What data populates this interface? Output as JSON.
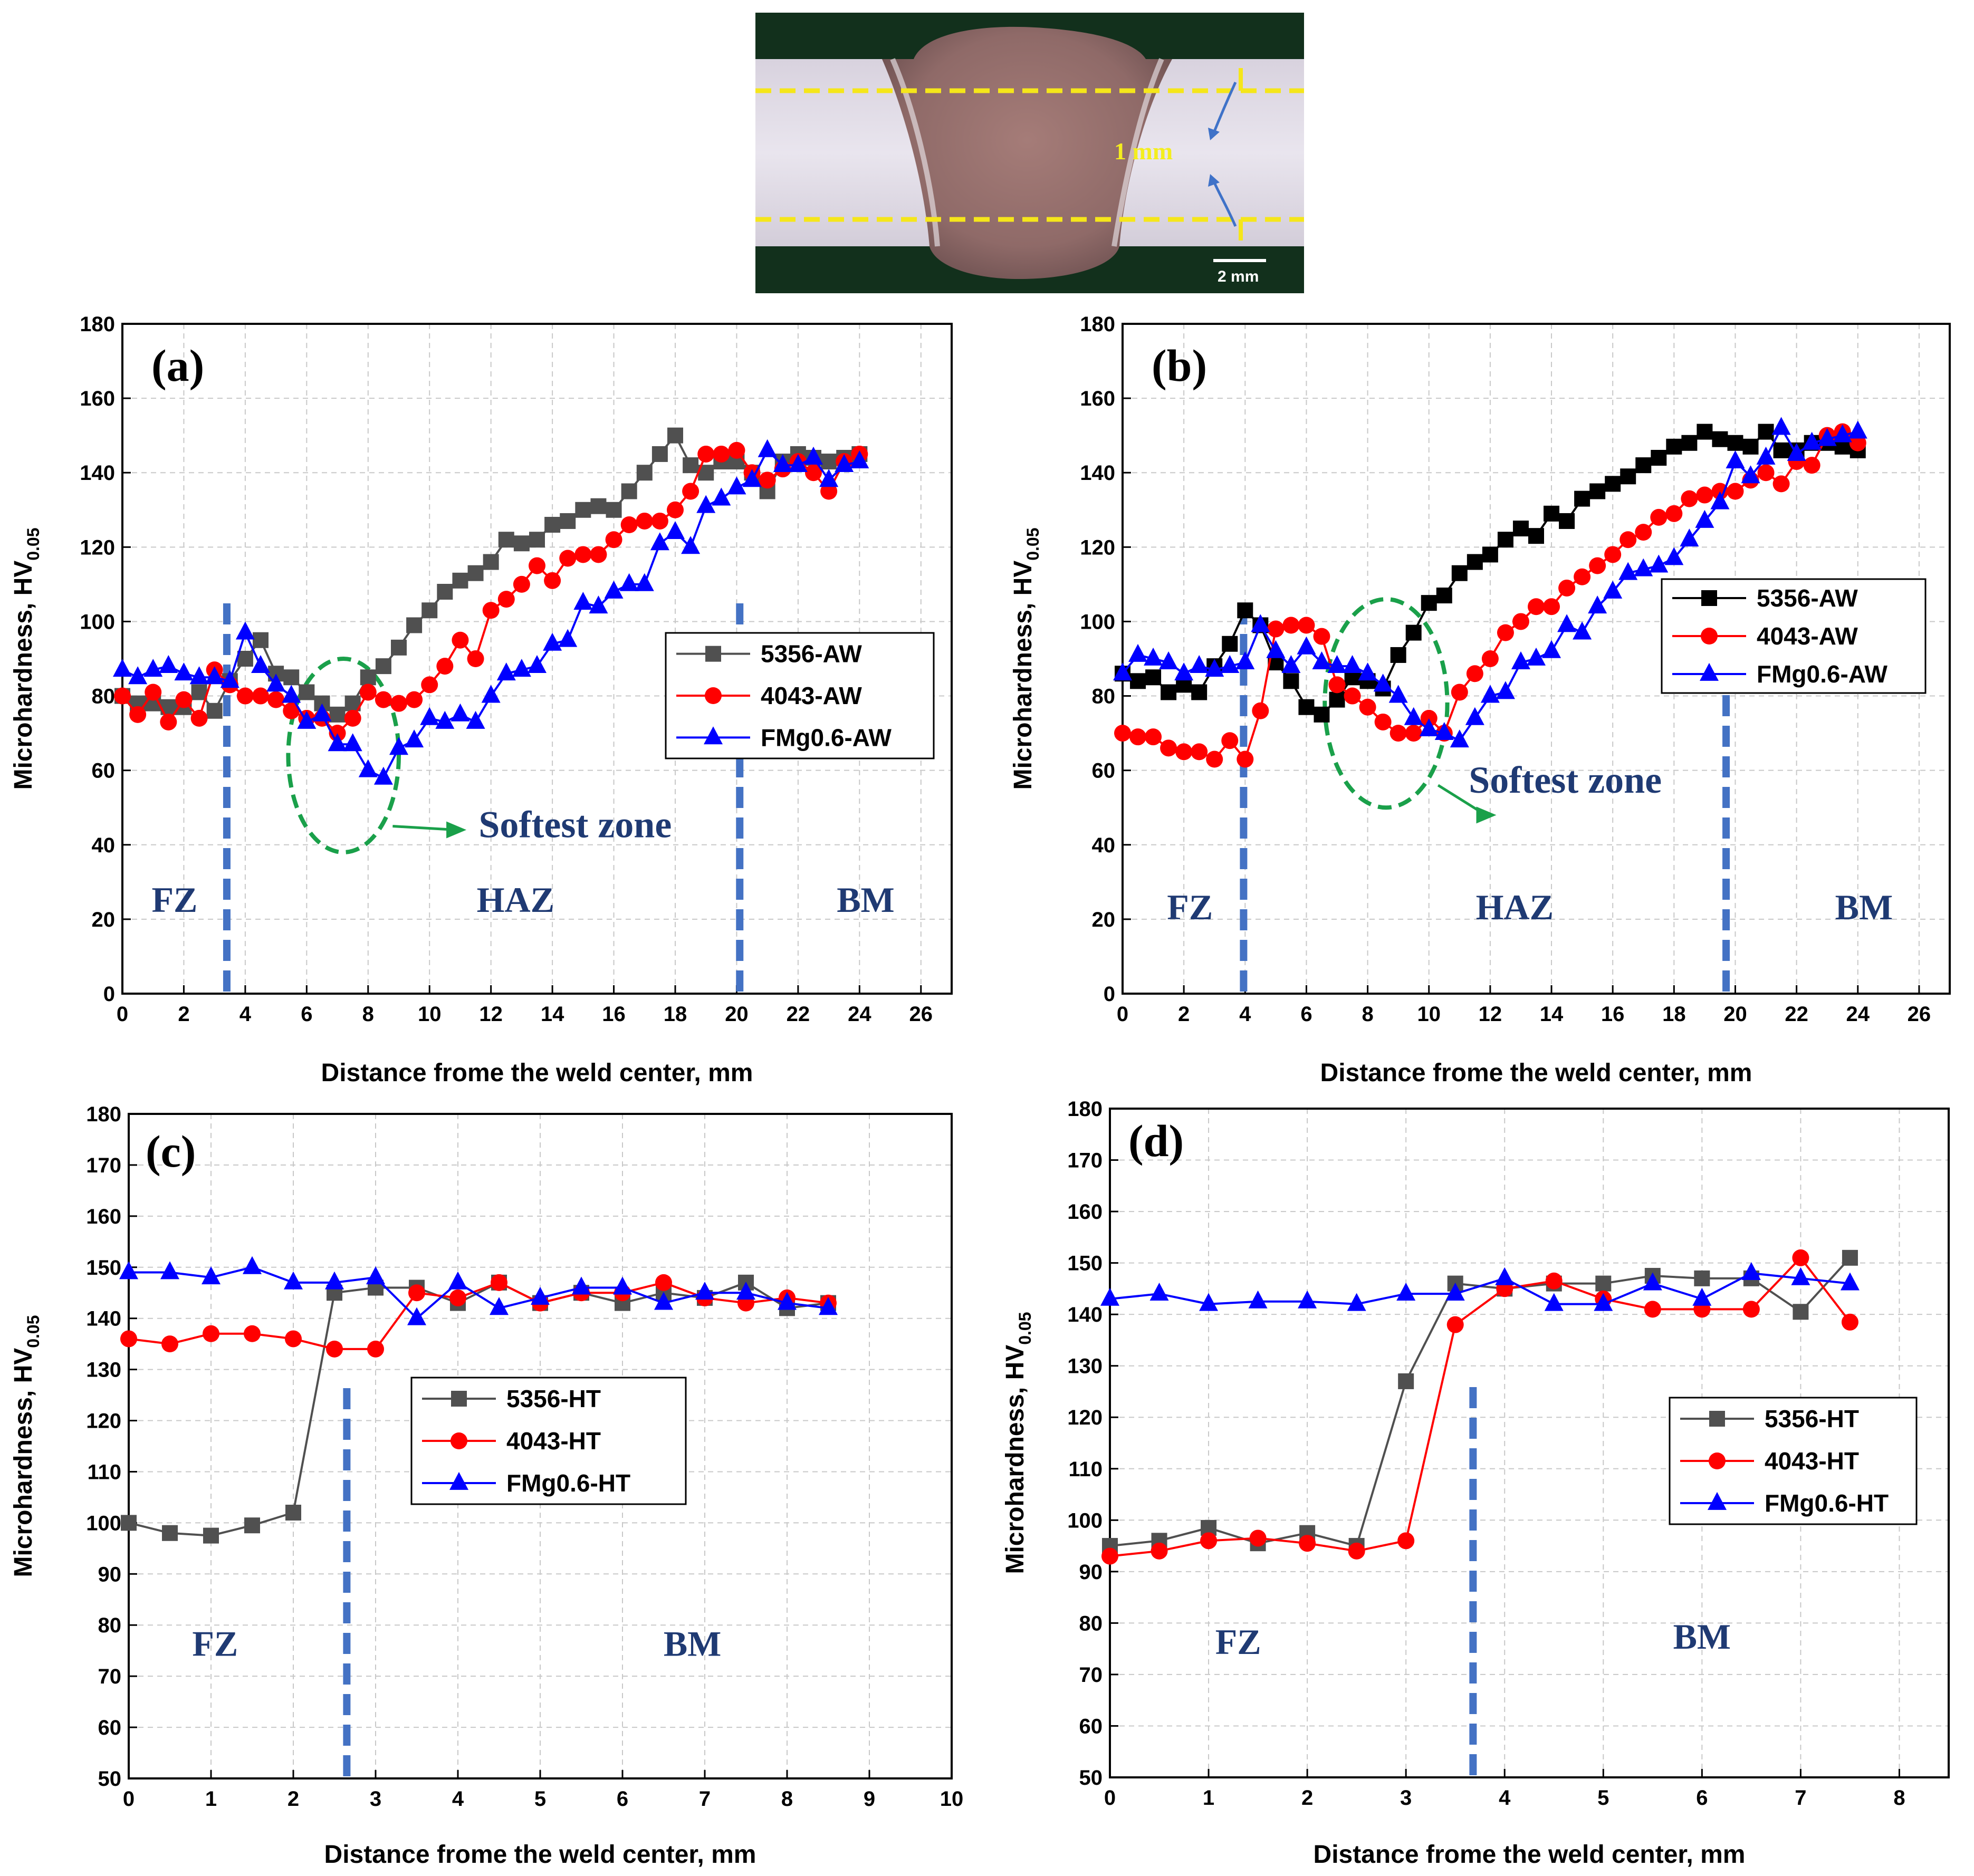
{
  "micrograph": {
    "dimension_label": "1 mm",
    "scale_label": "2 mm"
  },
  "colors": {
    "5356": "#505050",
    "5356_b": "#000000",
    "4043": "#ff0000",
    "FMg06": "#0000ff",
    "boundary": "#4472c4",
    "ellipse": "#1aa04a",
    "zone_text": "#1f3a73"
  },
  "chart_data": [
    {
      "id": "a",
      "type": "line",
      "tag": "(a)",
      "xlabel": "Distance frome the weld center, mm",
      "ylabel_main": "Microhardness, HV",
      "ylabel_sub": "0.05",
      "xlim": [
        0,
        27
      ],
      "ylim": [
        0,
        180
      ],
      "xticks": [
        0,
        2,
        4,
        6,
        8,
        10,
        12,
        14,
        16,
        18,
        20,
        22,
        24,
        26
      ],
      "yticks": [
        0,
        20,
        40,
        60,
        80,
        100,
        120,
        140,
        160,
        180
      ],
      "boundaries": [
        3.4,
        20.1
      ],
      "zones": [
        {
          "label": "FZ",
          "x": 1.7,
          "y": 22
        },
        {
          "label": "HAZ",
          "x": 12.8,
          "y": 22
        },
        {
          "label": "BM",
          "x": 24.2,
          "y": 22
        }
      ],
      "softest": {
        "label": "Softest zone",
        "cx": 7.2,
        "cy": 64,
        "rx": 1.8,
        "ry": 26,
        "ax1": 8.8,
        "ay1": 45,
        "ax2": 11.2,
        "ay2": 44,
        "tx": 11.6,
        "ty": 42
      },
      "series": [
        {
          "name": "5356-AW",
          "color": "#505050",
          "marker": "square",
          "x": [
            0,
            0.5,
            1,
            1.5,
            2,
            2.5,
            3,
            3.5,
            4,
            4.5,
            5,
            5.5,
            6,
            6.5,
            7,
            7.5,
            8,
            8.5,
            9,
            9.5,
            10,
            10.5,
            11,
            11.5,
            12,
            12.5,
            13,
            13.5,
            14,
            14.5,
            15,
            15.5,
            16,
            16.5,
            17,
            17.5,
            18,
            18.5,
            19,
            19.5,
            20,
            20.5,
            21,
            21.5,
            22,
            22.5,
            23,
            23.5,
            24
          ],
          "y": [
            80,
            78,
            78,
            77,
            77,
            81,
            76,
            84,
            90,
            95,
            86,
            85,
            81,
            78,
            75,
            78,
            85,
            88,
            93,
            99,
            103,
            108,
            111,
            113,
            116,
            122,
            121,
            122,
            126,
            127,
            130,
            131,
            130,
            135,
            140,
            145,
            150,
            142,
            140,
            143,
            143,
            140,
            135,
            143,
            145,
            144,
            143,
            144,
            145
          ]
        },
        {
          "name": "4043-AW",
          "color": "#ff0000",
          "marker": "circle",
          "x": [
            0,
            0.5,
            1,
            1.5,
            2,
            2.5,
            3,
            3.5,
            4,
            4.5,
            5,
            5.5,
            6,
            6.5,
            7,
            7.5,
            8,
            8.5,
            9,
            9.5,
            10,
            10.5,
            11,
            11.5,
            12,
            12.5,
            13,
            13.5,
            14,
            14.5,
            15,
            15.5,
            16,
            16.5,
            17,
            17.5,
            18,
            18.5,
            19,
            19.5,
            20,
            20.5,
            21,
            21.5,
            22,
            22.5,
            23,
            23.5,
            24
          ],
          "y": [
            80,
            75,
            81,
            73,
            79,
            74,
            87,
            83,
            80,
            80,
            79,
            76,
            74,
            74,
            70,
            74,
            81,
            79,
            78,
            79,
            83,
            88,
            95,
            90,
            103,
            106,
            110,
            115,
            111,
            117,
            118,
            118,
            122,
            126,
            127,
            127,
            130,
            135,
            145,
            145,
            146,
            140,
            138,
            141,
            143,
            140,
            135,
            143,
            145
          ]
        },
        {
          "name": "FMg0.6-AW",
          "color": "#0000ff",
          "marker": "triangle",
          "x": [
            0,
            0.5,
            1,
            1.5,
            2,
            2.5,
            3,
            3.5,
            4,
            4.5,
            5,
            5.5,
            6,
            6.5,
            7,
            7.5,
            8,
            8.5,
            9,
            9.5,
            10,
            10.5,
            11,
            11.5,
            12,
            12.5,
            13,
            13.5,
            14,
            14.5,
            15,
            15.5,
            16,
            16.5,
            17,
            17.5,
            18,
            18.5,
            19,
            19.5,
            20,
            20.5,
            21,
            21.5,
            22,
            22.5,
            23,
            23.5,
            24
          ],
          "y": [
            87,
            85,
            87,
            88,
            86,
            85,
            85,
            84,
            97,
            88,
            83,
            80,
            73,
            75,
            67,
            67,
            60,
            58,
            66,
            68,
            74,
            73,
            75,
            73,
            80,
            86,
            87,
            88,
            94,
            95,
            105,
            104,
            108,
            110,
            110,
            121,
            124,
            120,
            131,
            133,
            136,
            138,
            146,
            142,
            142,
            144,
            138,
            142,
            143
          ]
        }
      ]
    },
    {
      "id": "b",
      "type": "line",
      "tag": "(b)",
      "xlabel": "Distance frome the weld center, mm",
      "ylabel_main": "Microhardness, HV",
      "ylabel_sub": "0.05",
      "xlim": [
        0,
        27
      ],
      "ylim": [
        0,
        180
      ],
      "xticks": [
        0,
        2,
        4,
        6,
        8,
        10,
        12,
        14,
        16,
        18,
        20,
        22,
        24,
        26
      ],
      "yticks": [
        0,
        20,
        40,
        60,
        80,
        100,
        120,
        140,
        160,
        180
      ],
      "boundaries": [
        3.95,
        19.7
      ],
      "zones": [
        {
          "label": "FZ",
          "x": 2.2,
          "y": 20
        },
        {
          "label": "HAZ",
          "x": 12.8,
          "y": 20
        },
        {
          "label": "BM",
          "x": 24.2,
          "y": 20
        }
      ],
      "softest": {
        "label": "Softest zone",
        "cx": 8.6,
        "cy": 78,
        "rx": 2.0,
        "ry": 28,
        "ax1": 10.3,
        "ay1": 56,
        "ax2": 12.2,
        "ay2": 48,
        "tx": 11.3,
        "ty": 54
      },
      "series": [
        {
          "name": "5356-AW",
          "color": "#000000",
          "marker": "square",
          "x": [
            0,
            0.5,
            1,
            1.5,
            2,
            2.5,
            3,
            3.5,
            4,
            4.5,
            5,
            5.5,
            6,
            6.5,
            7,
            7.5,
            8,
            8.5,
            9,
            9.5,
            10,
            10.5,
            11,
            11.5,
            12,
            12.5,
            13,
            13.5,
            14,
            14.5,
            15,
            15.5,
            16,
            16.5,
            17,
            17.5,
            18,
            18.5,
            19,
            19.5,
            20,
            20.5,
            21,
            21.5,
            22,
            22.5,
            23,
            23.5,
            24
          ],
          "y": [
            86,
            84,
            85,
            81,
            83,
            81,
            88,
            94,
            103,
            99,
            89,
            84,
            77,
            75,
            79,
            85,
            84,
            82,
            91,
            97,
            105,
            107,
            113,
            116,
            118,
            122,
            125,
            123,
            129,
            127,
            133,
            135,
            137,
            139,
            142,
            144,
            147,
            148,
            151,
            149,
            148,
            147,
            151,
            146,
            146,
            148,
            148,
            147,
            146
          ]
        },
        {
          "name": "4043-AW",
          "color": "#ff0000",
          "marker": "circle",
          "x": [
            0,
            0.5,
            1,
            1.5,
            2,
            2.5,
            3,
            3.5,
            4,
            4.5,
            5,
            5.5,
            6,
            6.5,
            7,
            7.5,
            8,
            8.5,
            9,
            9.5,
            10,
            10.5,
            11,
            11.5,
            12,
            12.5,
            13,
            13.5,
            14,
            14.5,
            15,
            15.5,
            16,
            16.5,
            17,
            17.5,
            18,
            18.5,
            19,
            19.5,
            20,
            20.5,
            21,
            21.5,
            22,
            22.5,
            23,
            23.5,
            24
          ],
          "y": [
            70,
            69,
            69,
            66,
            65,
            65,
            63,
            68,
            63,
            76,
            98,
            99,
            99,
            96,
            83,
            80,
            77,
            73,
            70,
            70,
            74,
            70,
            81,
            86,
            90,
            97,
            100,
            104,
            104,
            109,
            112,
            115,
            118,
            122,
            124,
            128,
            129,
            133,
            134,
            135,
            135,
            138,
            140,
            137,
            143,
            142,
            150,
            151,
            148
          ]
        },
        {
          "name": "FMg0.6-AW",
          "color": "#0000ff",
          "marker": "triangle",
          "x": [
            0,
            0.5,
            1,
            1.5,
            2,
            2.5,
            3,
            3.5,
            4,
            4.5,
            5,
            5.5,
            6,
            6.5,
            7,
            7.5,
            8,
            8.5,
            9,
            9.5,
            10,
            10.5,
            11,
            11.5,
            12,
            12.5,
            13,
            13.5,
            14,
            14.5,
            15,
            15.5,
            16,
            16.5,
            17,
            17.5,
            18,
            18.5,
            19,
            19.5,
            20,
            20.5,
            21,
            21.5,
            22,
            22.5,
            23,
            23.5,
            24
          ],
          "y": [
            86,
            91,
            90,
            89,
            86,
            88,
            87,
            88,
            89,
            99,
            92,
            88,
            93,
            89,
            88,
            88,
            86,
            83,
            80,
            74,
            71,
            70,
            68,
            74,
            80,
            81,
            89,
            90,
            92,
            99,
            97,
            104,
            108,
            113,
            114,
            115,
            117,
            122,
            127,
            132,
            143,
            139,
            144,
            152,
            145,
            148,
            149,
            150,
            151
          ]
        }
      ]
    },
    {
      "id": "c",
      "type": "line",
      "tag": "(c)",
      "xlabel": "Distance frome the weld center, mm",
      "ylabel_main": "Microhardness, HV",
      "ylabel_sub": "0.05",
      "xlim": [
        0,
        10
      ],
      "ylim": [
        50,
        180
      ],
      "xticks": [
        0,
        1,
        2,
        3,
        4,
        5,
        6,
        7,
        8,
        9,
        10
      ],
      "yticks": [
        50,
        60,
        70,
        80,
        90,
        100,
        110,
        120,
        130,
        140,
        150,
        160,
        170,
        180
      ],
      "boundaries": [
        2.65
      ],
      "zones": [
        {
          "label": "FZ",
          "x": 1.05,
          "y": 74
        },
        {
          "label": "BM",
          "x": 6.85,
          "y": 74
        }
      ],
      "series": [
        {
          "name": "5356-HT",
          "color": "#505050",
          "marker": "square",
          "x": [
            0,
            0.5,
            1,
            1.5,
            2,
            2.5,
            3,
            3.5,
            4,
            4.5,
            5,
            5.5,
            6,
            6.5,
            7,
            7.5,
            8,
            8.5
          ],
          "y": [
            100,
            98,
            97.5,
            99.5,
            102,
            145,
            146,
            146,
            143,
            147,
            143,
            145,
            143,
            145,
            144,
            147,
            142,
            143
          ]
        },
        {
          "name": "4043-HT",
          "color": "#ff0000",
          "marker": "circle",
          "x": [
            0,
            0.5,
            1,
            1.5,
            2,
            2.5,
            3,
            3.5,
            4,
            4.5,
            5,
            5.5,
            6,
            6.5,
            7,
            7.5,
            8,
            8.5
          ],
          "y": [
            136,
            135,
            137,
            137,
            136,
            134,
            134,
            145,
            144,
            147,
            143,
            145,
            145,
            147,
            144,
            143,
            144,
            143
          ]
        },
        {
          "name": "FMg0.6-HT",
          "color": "#0000ff",
          "marker": "triangle",
          "x": [
            0,
            0.5,
            1,
            1.5,
            2,
            2.5,
            3,
            3.5,
            4,
            4.5,
            5,
            5.5,
            6,
            6.5,
            7,
            7.5,
            8,
            8.5
          ],
          "y": [
            149,
            149,
            148,
            150,
            147,
            147,
            148,
            140,
            147,
            142,
            144,
            146,
            146,
            143,
            145,
            145,
            143,
            142
          ]
        }
      ]
    },
    {
      "id": "d",
      "type": "line",
      "tag": "(d)",
      "xlabel": "Distance frome the weld center, mm",
      "ylabel_main": "Microhardness, HV",
      "ylabel_sub": "0.05",
      "xlim": [
        0,
        8.5
      ],
      "ylim": [
        50,
        180
      ],
      "xticks": [
        0,
        1,
        2,
        3,
        4,
        5,
        6,
        7,
        8
      ],
      "yticks": [
        50,
        60,
        70,
        80,
        90,
        100,
        110,
        120,
        130,
        140,
        150,
        160,
        170,
        180
      ],
      "boundaries": [
        3.68
      ],
      "zones": [
        {
          "label": "FZ",
          "x": 1.3,
          "y": 74
        },
        {
          "label": "BM",
          "x": 6.0,
          "y": 75
        }
      ],
      "series": [
        {
          "name": "5356-HT",
          "color": "#505050",
          "marker": "square",
          "x": [
            0,
            0.5,
            1,
            1.5,
            2,
            2.5,
            3,
            3.5,
            4,
            4.5,
            5,
            5.5,
            6,
            6.5,
            7,
            7.5
          ],
          "y": [
            95,
            96,
            98.5,
            95.5,
            97.5,
            95,
            127,
            146,
            145,
            146,
            146,
            147.5,
            147,
            147,
            140.5,
            151
          ]
        },
        {
          "name": "4043-HT",
          "color": "#ff0000",
          "marker": "circle",
          "x": [
            0,
            0.5,
            1,
            1.5,
            2,
            2.5,
            3,
            3.5,
            4,
            4.5,
            5,
            5.5,
            6,
            6.5,
            7,
            7.5
          ],
          "y": [
            93,
            94,
            96,
            96.5,
            95.5,
            94,
            96,
            138,
            145,
            146.5,
            143,
            141,
            141,
            141,
            151,
            138.5
          ]
        },
        {
          "name": "FMg0.6-HT",
          "color": "#0000ff",
          "marker": "triangle",
          "x": [
            0,
            0.5,
            1,
            1.5,
            2,
            2.5,
            3,
            3.5,
            4,
            4.5,
            5,
            5.5,
            6,
            6.5,
            7,
            7.5
          ],
          "y": [
            143,
            144,
            142,
            142.5,
            142.5,
            142,
            144,
            144,
            147,
            142,
            142,
            146,
            143,
            148,
            147,
            146
          ]
        }
      ]
    }
  ]
}
